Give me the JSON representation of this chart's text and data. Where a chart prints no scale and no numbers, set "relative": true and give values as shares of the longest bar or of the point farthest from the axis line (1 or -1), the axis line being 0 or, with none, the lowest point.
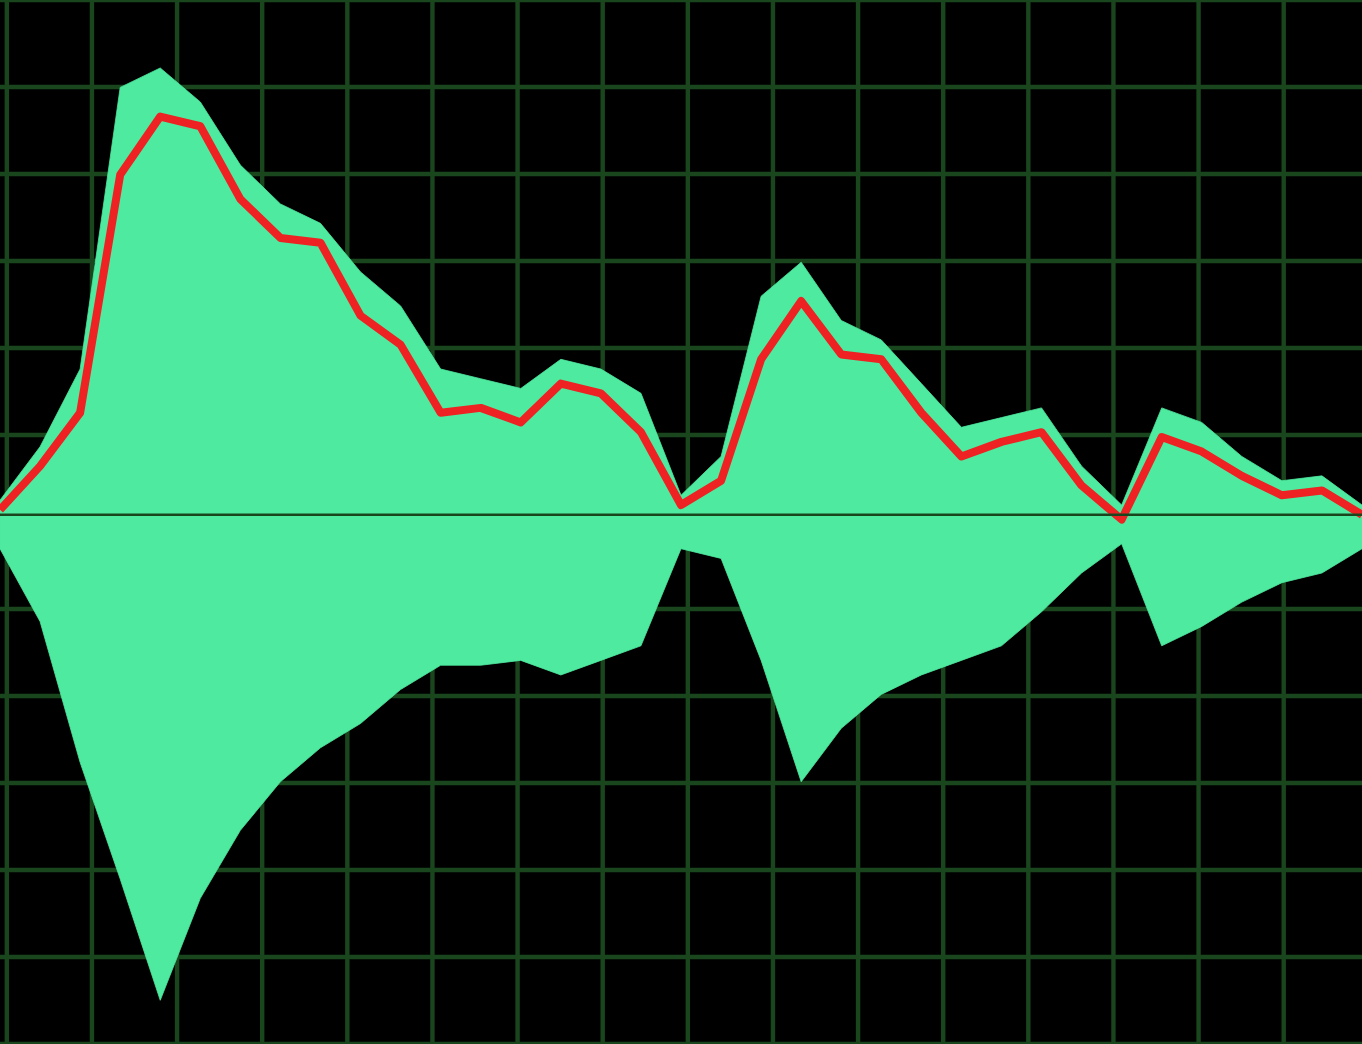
{
  "chart_data": {
    "type": "area",
    "relative": true,
    "grid": true,
    "categories": [
      null,
      null,
      null,
      null,
      null,
      null,
      null,
      null,
      null,
      null,
      null,
      null,
      null,
      null,
      null,
      null,
      null,
      null,
      null,
      null,
      null,
      null,
      null,
      null,
      null,
      null,
      null,
      null,
      null,
      null,
      null,
      null,
      null,
      null,
      null
    ],
    "series": [
      {
        "color": "#4eeaa0",
        "values": [
          0.03,
          0.14,
          0.3,
          0.88,
          0.92,
          0.85,
          0.72,
          0.64,
          0.6,
          0.5,
          0.43,
          0.3,
          0.28,
          0.26,
          0.32,
          0.3,
          0.25,
          0.04,
          0.12,
          0.45,
          0.52,
          0.4,
          0.36,
          0.27,
          0.18,
          0.2,
          0.22,
          0.1,
          0.02,
          0.22,
          0.19,
          0.12,
          0.07,
          0.08,
          0.02
        ]
      },
      {
        "color": "#4eeaa0",
        "values": [
          -0.07,
          -0.22,
          -0.51,
          -0.75,
          -1.0,
          -0.79,
          -0.65,
          -0.55,
          -0.48,
          -0.43,
          -0.36,
          -0.31,
          -0.31,
          -0.3,
          -0.33,
          -0.3,
          -0.27,
          -0.07,
          -0.09,
          -0.3,
          -0.55,
          -0.44,
          -0.37,
          -0.33,
          -0.3,
          -0.27,
          -0.2,
          -0.12,
          -0.06,
          -0.27,
          -0.23,
          -0.18,
          -0.14,
          -0.12,
          -0.07
        ]
      },
      {
        "type": "line",
        "color": "#ee2222",
        "values": [
          0.01,
          0.1,
          0.21,
          0.7,
          0.82,
          0.8,
          0.65,
          0.57,
          0.56,
          0.41,
          0.35,
          0.21,
          0.22,
          0.19,
          0.27,
          0.25,
          0.17,
          0.02,
          0.07,
          0.32,
          0.44,
          0.33,
          0.32,
          0.21,
          0.12,
          0.15,
          0.17,
          0.06,
          -0.01,
          0.16,
          0.13,
          0.08,
          0.04,
          0.05,
          0.0
        ]
      }
    ]
  }
}
